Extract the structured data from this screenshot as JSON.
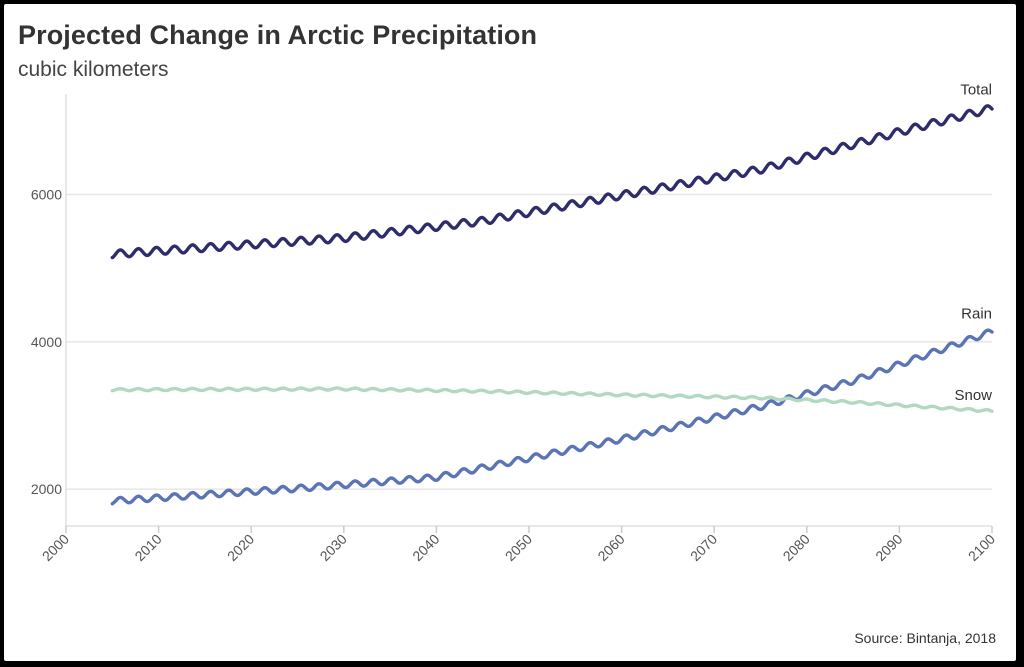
{
  "chart_data": {
    "type": "line",
    "title": "Projected Change in Arctic Precipitation",
    "subtitle": "cubic kilometers",
    "source": "Source: Bintanja, 2018",
    "xlabel": "",
    "ylabel": "",
    "xlim": [
      2000,
      2100
    ],
    "ylim": [
      1500,
      7500
    ],
    "x_ticks": [
      2000,
      2010,
      2020,
      2030,
      2040,
      2050,
      2060,
      2070,
      2080,
      2090,
      2100
    ],
    "y_ticks": [
      2000,
      4000,
      6000
    ],
    "grid": true,
    "legend": "direct labels at line ends",
    "series": [
      {
        "name": "Total",
        "color": "#2e2c6b",
        "keypoints": {
          "x": [
            2005,
            2030,
            2045,
            2060,
            2075,
            2090,
            2100
          ],
          "y": [
            5190,
            5410,
            5640,
            5990,
            6340,
            6850,
            7170
          ]
        },
        "oscillation_amplitude": 50
      },
      {
        "name": "Rain",
        "color": "#5b74b5",
        "keypoints": {
          "x": [
            2005,
            2025,
            2040,
            2060,
            2075,
            2085,
            2100
          ],
          "y": [
            1840,
            2010,
            2160,
            2680,
            3120,
            3470,
            4140
          ]
        },
        "oscillation_amplitude": 40
      },
      {
        "name": "Snow",
        "color": "#b3d8c2",
        "keypoints": {
          "x": [
            2005,
            2030,
            2045,
            2060,
            2075,
            2085,
            2100
          ],
          "y": [
            3350,
            3360,
            3330,
            3280,
            3240,
            3180,
            3060
          ]
        },
        "oscillation_amplitude": 14
      }
    ]
  }
}
